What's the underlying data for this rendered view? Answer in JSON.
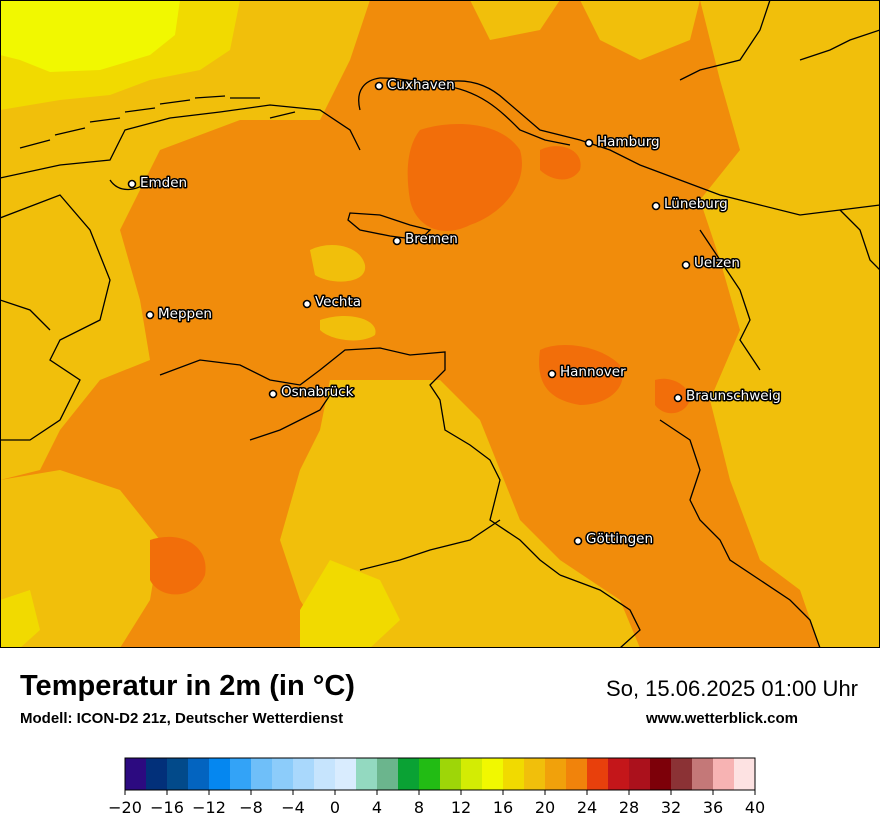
{
  "title": "Temperatur in 2m (in °C)",
  "model_info": "Modell: ICON-D2 21z, Deutscher Wetterdienst",
  "datetime": "So, 15.06.2025 01:00 Uhr",
  "website": "www.wetterblick.com",
  "cities": [
    {
      "name": "Cuxhaven"
    },
    {
      "name": "Hamburg"
    },
    {
      "name": "Emden"
    },
    {
      "name": "Lüneburg"
    },
    {
      "name": "Bremen"
    },
    {
      "name": "Uelzen"
    },
    {
      "name": "Vechta"
    },
    {
      "name": "Meppen"
    },
    {
      "name": "Hannover"
    },
    {
      "name": "Osnabrück"
    },
    {
      "name": "Braunschweig"
    },
    {
      "name": "Göttingen"
    }
  ],
  "colorbar": {
    "min": -20,
    "max": 40,
    "step": 2,
    "tick_labels": [
      "−20",
      "−16",
      "−12",
      "−8",
      "−4",
      "0",
      "4",
      "8",
      "12",
      "16",
      "20",
      "24",
      "28",
      "32",
      "36",
      "40"
    ],
    "colors": [
      "#2c0a80",
      "#02307a",
      "#024a8a",
      "#0364c0",
      "#0587f0",
      "#33a3f7",
      "#6fbff9",
      "#8cccfa",
      "#a9d8fc",
      "#c6e4fd",
      "#d9ecfe",
      "#93d9c0",
      "#6bb58d",
      "#0aa234",
      "#22bc14",
      "#9ed608",
      "#d3ec04",
      "#f1f800",
      "#f1da00",
      "#f1bf0b",
      "#f1a10b",
      "#f1830b",
      "#e8400c",
      "#c4161a",
      "#ab111c",
      "#7d0009",
      "#8b3235",
      "#c47878",
      "#f7b3b3",
      "#fde2e2"
    ]
  },
  "map_colors": {
    "base": "#f18c0b",
    "warm": "#f26e0a",
    "cool": "#f1bf0b",
    "cooler": "#f1da00",
    "coolest": "#f1f800"
  }
}
